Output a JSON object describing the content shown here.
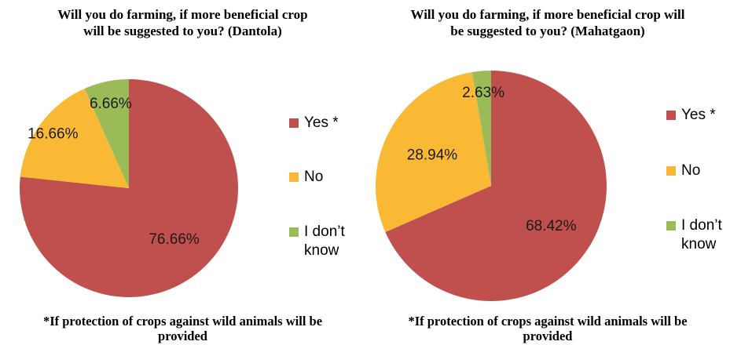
{
  "chart_data": [
    {
      "type": "pie",
      "title": "Will you do farming, if more beneficial crop\nwill be suggested to you? (Dantola)",
      "categories": [
        "Yes *",
        "No",
        "I don’t\nknow"
      ],
      "values": [
        76.66,
        16.66,
        6.66
      ],
      "labels": [
        "76.66%",
        "16.66%",
        "6.66%"
      ],
      "colors": [
        "#c0504d",
        "#f9b934",
        "#9bbb59"
      ],
      "legend": "right",
      "footnote": "*If protection of crops against wild animals will be\nprovided"
    },
    {
      "type": "pie",
      "title": "Will you do farming, if more beneficial crop will\nbe suggested to you? (Mahatgaon)",
      "categories": [
        "Yes *",
        "No",
        "I don’t\nknow"
      ],
      "values": [
        68.42,
        28.94,
        2.63
      ],
      "labels": [
        "68.42%",
        "28.94%",
        "2.63%"
      ],
      "colors": [
        "#c0504d",
        "#f9b934",
        "#9bbb59"
      ],
      "legend": "right",
      "footnote": "*If protection of crops against wild animals will be\nprovided"
    }
  ]
}
